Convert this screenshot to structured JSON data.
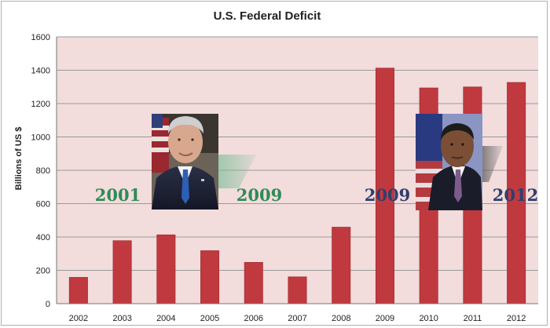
{
  "chart_data": {
    "type": "bar",
    "title": "U.S. Federal Deficit",
    "xlabel": "",
    "ylabel": "Billions of US $",
    "ylim": [
      0,
      1600
    ],
    "yticks": [
      0,
      200,
      400,
      600,
      800,
      1000,
      1200,
      1400,
      1600
    ],
    "grid": true,
    "categories": [
      "2002",
      "2003",
      "2004",
      "2005",
      "2006",
      "2007",
      "2008",
      "2009",
      "2010",
      "2011",
      "2012"
    ],
    "values": [
      158,
      378,
      413,
      318,
      248,
      161,
      459,
      1413,
      1294,
      1300,
      1327
    ],
    "bar_color": "#c0393f",
    "plot_background": "#f2dcdc"
  },
  "annotations": {
    "bush": {
      "photo": "george-w-bush-portrait",
      "start_year": "2001",
      "end_year": "2009",
      "color": "#2e8b57"
    },
    "obama": {
      "photo": "barack-obama-portrait",
      "start_year": "2009",
      "end_year": "2012",
      "color": "#2f3f6e"
    }
  }
}
